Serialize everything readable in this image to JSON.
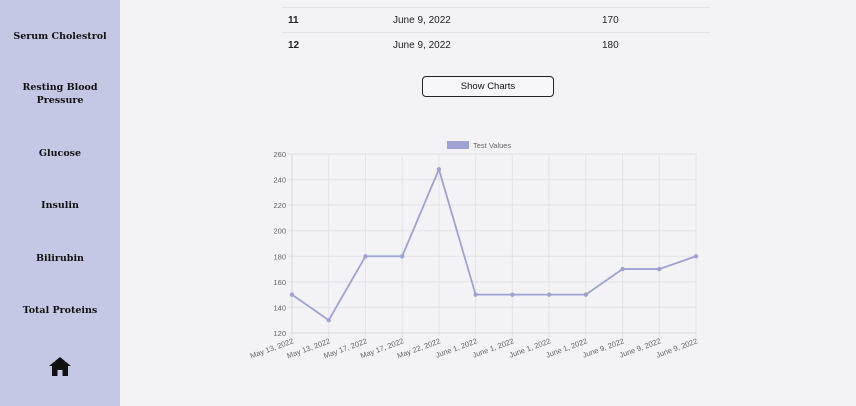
{
  "sidebar": {
    "items": [
      {
        "label": "Serum Cholestrol"
      },
      {
        "label": "Resting Blood\nPressure"
      },
      {
        "label": "Glucose"
      },
      {
        "label": "Insulin"
      },
      {
        "label": "Bilirubin"
      },
      {
        "label": "Total Proteins"
      }
    ],
    "home_icon": "home-icon"
  },
  "table": {
    "rows": [
      {
        "index": "11",
        "date": "June 9, 2022",
        "value": "170"
      },
      {
        "index": "12",
        "date": "June 9, 2022",
        "value": "180"
      }
    ]
  },
  "show_charts_label": "Show Charts",
  "chart_data": {
    "type": "line",
    "categories": [
      "May 13, 2022",
      "May 13, 2022",
      "May 17, 2022",
      "May 17, 2022",
      "May 22, 2022",
      "June 1, 2022",
      "June 1, 2022",
      "June 1, 2022",
      "June 1, 2022",
      "June 9, 2022",
      "June 9, 2022",
      "June 9, 2022"
    ],
    "series": [
      {
        "name": "Test Values",
        "values": [
          150,
          130,
          180,
          180,
          248,
          150,
          150,
          150,
          150,
          170,
          170,
          180
        ],
        "color": "#9fa2d2"
      }
    ],
    "yticks": [
      120,
      140,
      160,
      180,
      200,
      220,
      240,
      260
    ],
    "ylim": [
      120,
      260
    ],
    "grid": true,
    "legend": "top-center"
  }
}
